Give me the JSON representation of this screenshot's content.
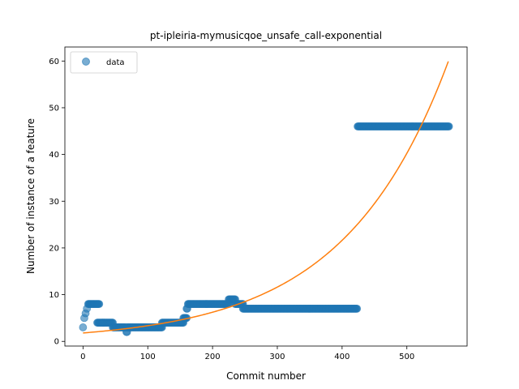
{
  "chart_data": {
    "type": "scatter",
    "title": "pt-ipleiria-mymusicqoe_unsafe_call-exponential",
    "xlabel": "Commit number",
    "ylabel": "Number of instance of a feature",
    "xlim": [
      -28,
      593
    ],
    "ylim": [
      -1,
      63
    ],
    "xticks": [
      0,
      100,
      200,
      300,
      400,
      500
    ],
    "yticks": [
      0,
      10,
      20,
      30,
      40,
      50,
      60
    ],
    "grid": false,
    "legend": {
      "position": "top-left",
      "entries": [
        "data"
      ]
    },
    "colors": {
      "data": "#1f77b4",
      "fit": "#ff7f0e"
    },
    "series": [
      {
        "name": "data",
        "kind": "scatter",
        "segments": [
          {
            "x_start": 0,
            "x_end": 0,
            "y": 3
          },
          {
            "x_start": 2,
            "x_end": 2,
            "y": 5
          },
          {
            "x_start": 4,
            "x_end": 4,
            "y": 6
          },
          {
            "x_start": 6,
            "x_end": 6,
            "y": 7
          },
          {
            "x_start": 8,
            "x_end": 25,
            "y": 8
          },
          {
            "x_start": 22,
            "x_end": 46,
            "y": 4
          },
          {
            "x_start": 46,
            "x_end": 66,
            "y": 3
          },
          {
            "x_start": 67,
            "x_end": 68,
            "y": 2
          },
          {
            "x_start": 68,
            "x_end": 122,
            "y": 3
          },
          {
            "x_start": 122,
            "x_end": 155,
            "y": 4
          },
          {
            "x_start": 155,
            "x_end": 160,
            "y": 5
          },
          {
            "x_start": 160,
            "x_end": 161,
            "y": 7
          },
          {
            "x_start": 162,
            "x_end": 225,
            "y": 8
          },
          {
            "x_start": 225,
            "x_end": 235,
            "y": 9
          },
          {
            "x_start": 235,
            "x_end": 247,
            "y": 8
          },
          {
            "x_start": 247,
            "x_end": 423,
            "y": 7
          },
          {
            "x_start": 424,
            "x_end": 565,
            "y": 46
          }
        ]
      },
      {
        "kind": "line",
        "function": "exponential",
        "a": 1.8,
        "b": 0.006215,
        "x_range": [
          0,
          564
        ]
      }
    ]
  }
}
